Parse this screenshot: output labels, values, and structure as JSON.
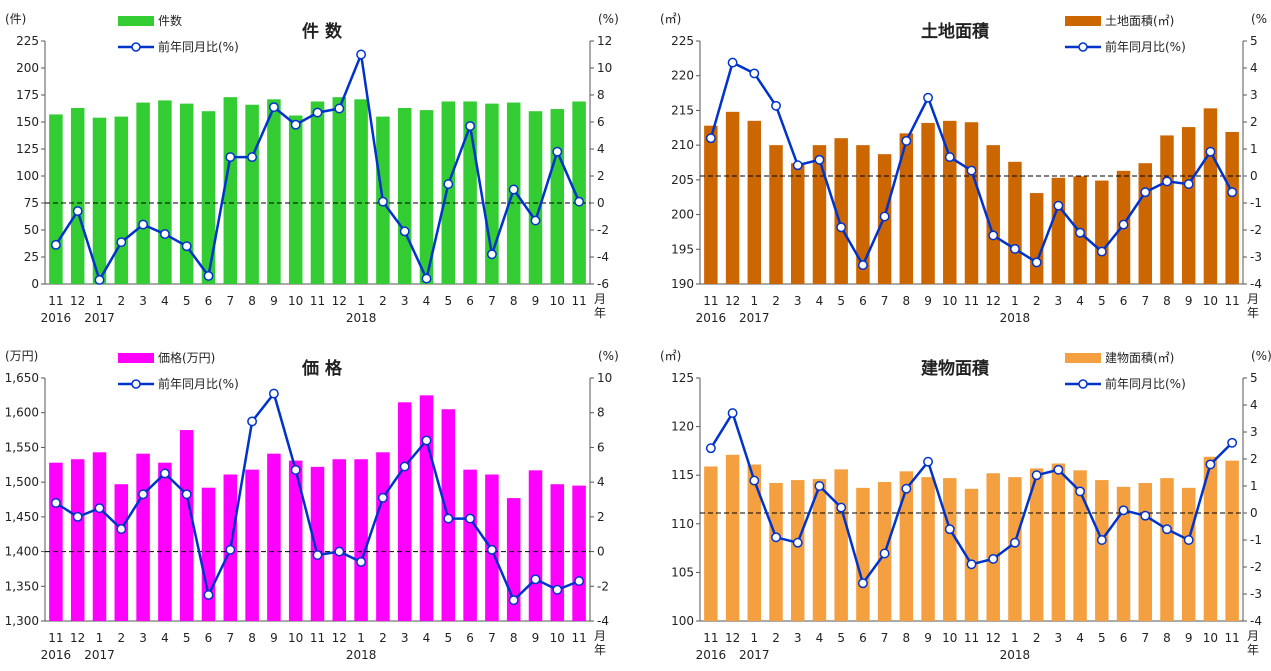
{
  "chart_data": [
    {
      "type": "bar",
      "title": "件 数",
      "left_unit": "(件)",
      "right_unit": "(%)",
      "categories": [
        "11",
        "12",
        "1",
        "2",
        "3",
        "4",
        "5",
        "6",
        "7",
        "8",
        "9",
        "10",
        "11",
        "12",
        "1",
        "2",
        "3",
        "4",
        "5",
        "6",
        "7",
        "8",
        "9",
        "10",
        "11"
      ],
      "year_labels": [
        "2016",
        "2017",
        "2018"
      ],
      "month_year_label": [
        "月",
        "年"
      ],
      "ylim": [
        0,
        225
      ],
      "yticks": [
        "0",
        "25",
        "50",
        "75",
        "100",
        "125",
        "150",
        "175",
        "200",
        "225"
      ],
      "y2lim": [
        -6,
        12
      ],
      "y2ticks": [
        "-6",
        "-4",
        "-2",
        "0",
        "2",
        "4",
        "6",
        "8",
        "10",
        "12"
      ],
      "reference_line": 0,
      "bar_color": "#33cc33",
      "line_color": "#0033cc",
      "series": [
        {
          "name": "件数",
          "values": [
            157,
            163,
            154,
            155,
            168,
            170,
            167,
            160,
            173,
            166,
            171,
            156,
            169,
            173,
            171,
            155,
            163,
            161,
            169,
            169,
            167,
            168,
            160,
            162,
            169
          ]
        },
        {
          "name": "前年同月比(%)",
          "values": [
            -3.1,
            -0.6,
            -5.7,
            -2.9,
            -1.6,
            -2.3,
            -3.2,
            -5.4,
            3.4,
            3.4,
            7.1,
            5.8,
            6.7,
            7.0,
            11.0,
            0.1,
            -2.1,
            -5.6,
            1.4,
            5.7,
            -3.8,
            1.0,
            -1.3,
            3.8,
            0.1
          ]
        }
      ]
    },
    {
      "type": "bar",
      "title": "土地面積",
      "left_unit": "(㎡)",
      "right_unit": "(%",
      "categories": [
        "11",
        "12",
        "1",
        "2",
        "3",
        "4",
        "5",
        "6",
        "7",
        "8",
        "9",
        "10",
        "11",
        "12",
        "1",
        "2",
        "3",
        "4",
        "5",
        "6",
        "7",
        "8",
        "9",
        "10",
        "11"
      ],
      "year_labels": [
        "2016",
        "2017",
        "2018"
      ],
      "month_year_label": [
        "月",
        "年"
      ],
      "ylim": [
        190,
        225
      ],
      "yticks": [
        "190",
        "195",
        "200",
        "205",
        "210",
        "215",
        "220",
        "225"
      ],
      "y2lim": [
        -4,
        5
      ],
      "y2ticks": [
        "-4",
        "-3",
        "-2",
        "-1",
        "0",
        "1",
        "2",
        "3",
        "4",
        "5"
      ],
      "reference_line": 0,
      "bar_color": "#cc6600",
      "line_color": "#0033cc",
      "series": [
        {
          "name": "土地面積(㎡)",
          "values": [
            212.8,
            214.8,
            213.5,
            210.0,
            207.4,
            210.0,
            211.0,
            210.0,
            208.7,
            211.7,
            213.2,
            213.5,
            213.3,
            210.0,
            207.6,
            203.1,
            205.3,
            205.5,
            204.9,
            206.3,
            207.4,
            211.4,
            212.6,
            215.3,
            211.9
          ]
        },
        {
          "name": "前年同月比(%)",
          "values": [
            1.4,
            4.2,
            3.8,
            2.6,
            0.4,
            0.6,
            -1.9,
            -3.3,
            -1.5,
            1.3,
            2.9,
            0.7,
            0.2,
            -2.2,
            -2.7,
            -3.2,
            -1.1,
            -2.1,
            -2.8,
            -1.8,
            -0.6,
            -0.2,
            -0.3,
            0.9,
            -0.6
          ]
        }
      ]
    },
    {
      "type": "bar",
      "title": "価 格",
      "left_unit": "(万円)",
      "right_unit": "(%)",
      "categories": [
        "11",
        "12",
        "1",
        "2",
        "3",
        "4",
        "5",
        "6",
        "7",
        "8",
        "9",
        "10",
        "11",
        "12",
        "1",
        "2",
        "3",
        "4",
        "5",
        "6",
        "7",
        "8",
        "9",
        "10",
        "11"
      ],
      "year_labels": [
        "2016",
        "2017",
        "2018"
      ],
      "month_year_label": [
        "月",
        "年"
      ],
      "ylim": [
        1300,
        1650
      ],
      "yticks": [
        "1,300",
        "1,350",
        "1,400",
        "1,450",
        "1,500",
        "1,550",
        "1,600",
        "1,650"
      ],
      "y2lim": [
        -4,
        10
      ],
      "y2ticks": [
        "-4",
        "-2",
        "0",
        "2",
        "4",
        "6",
        "8",
        "10"
      ],
      "reference_line": 0,
      "bar_color": "#ff00ff",
      "line_color": "#0033cc",
      "series": [
        {
          "name": "価格(万円)",
          "values": [
            1528,
            1533,
            1543,
            1497,
            1541,
            1528,
            1575,
            1492,
            1511,
            1518,
            1541,
            1531,
            1522,
            1533,
            1533,
            1543,
            1615,
            1625,
            1605,
            1518,
            1511,
            1477,
            1517,
            1497,
            1495
          ]
        },
        {
          "name": "前年同月比(%)",
          "values": [
            2.8,
            2.0,
            2.5,
            1.3,
            3.3,
            4.5,
            3.3,
            -2.5,
            0.1,
            7.5,
            9.1,
            4.7,
            -0.2,
            0.0,
            -0.6,
            3.1,
            4.9,
            6.4,
            1.9,
            1.9,
            0.1,
            -2.8,
            -1.6,
            -2.2,
            -1.7
          ]
        }
      ]
    },
    {
      "type": "bar",
      "title": "建物面積",
      "left_unit": "(㎡)",
      "right_unit": "(%)",
      "categories": [
        "11",
        "12",
        "1",
        "2",
        "3",
        "4",
        "5",
        "6",
        "7",
        "8",
        "9",
        "10",
        "11",
        "12",
        "1",
        "2",
        "3",
        "4",
        "5",
        "6",
        "7",
        "8",
        "9",
        "10",
        "11"
      ],
      "year_labels": [
        "2016",
        "2017",
        "2018"
      ],
      "month_year_label": [
        "月",
        "年"
      ],
      "ylim": [
        100,
        125
      ],
      "yticks": [
        "100",
        "105",
        "110",
        "115",
        "120",
        "125"
      ],
      "y2lim": [
        -4,
        5
      ],
      "y2ticks": [
        "-4",
        "-3",
        "-2",
        "-1",
        "0",
        "1",
        "2",
        "3",
        "4",
        "5"
      ],
      "reference_line": 0,
      "bar_color": "#f5a040",
      "line_color": "#0033cc",
      "series": [
        {
          "name": "建物面積(㎡)",
          "values": [
            115.9,
            117.1,
            116.1,
            114.2,
            114.5,
            114.6,
            115.6,
            113.7,
            114.3,
            115.4,
            114.8,
            114.7,
            113.6,
            115.2,
            114.8,
            115.7,
            116.2,
            115.5,
            114.5,
            113.8,
            114.2,
            114.7,
            113.7,
            116.9,
            116.5
          ]
        },
        {
          "name": "前年同月比(%)",
          "values": [
            2.4,
            3.7,
            1.2,
            -0.9,
            -1.1,
            1.0,
            0.2,
            -2.6,
            -1.5,
            0.9,
            1.9,
            -0.6,
            -1.9,
            -1.7,
            -1.1,
            1.4,
            1.6,
            0.8,
            -1.0,
            0.1,
            -0.1,
            -0.6,
            -1.0,
            1.8,
            2.6
          ]
        }
      ]
    }
  ]
}
